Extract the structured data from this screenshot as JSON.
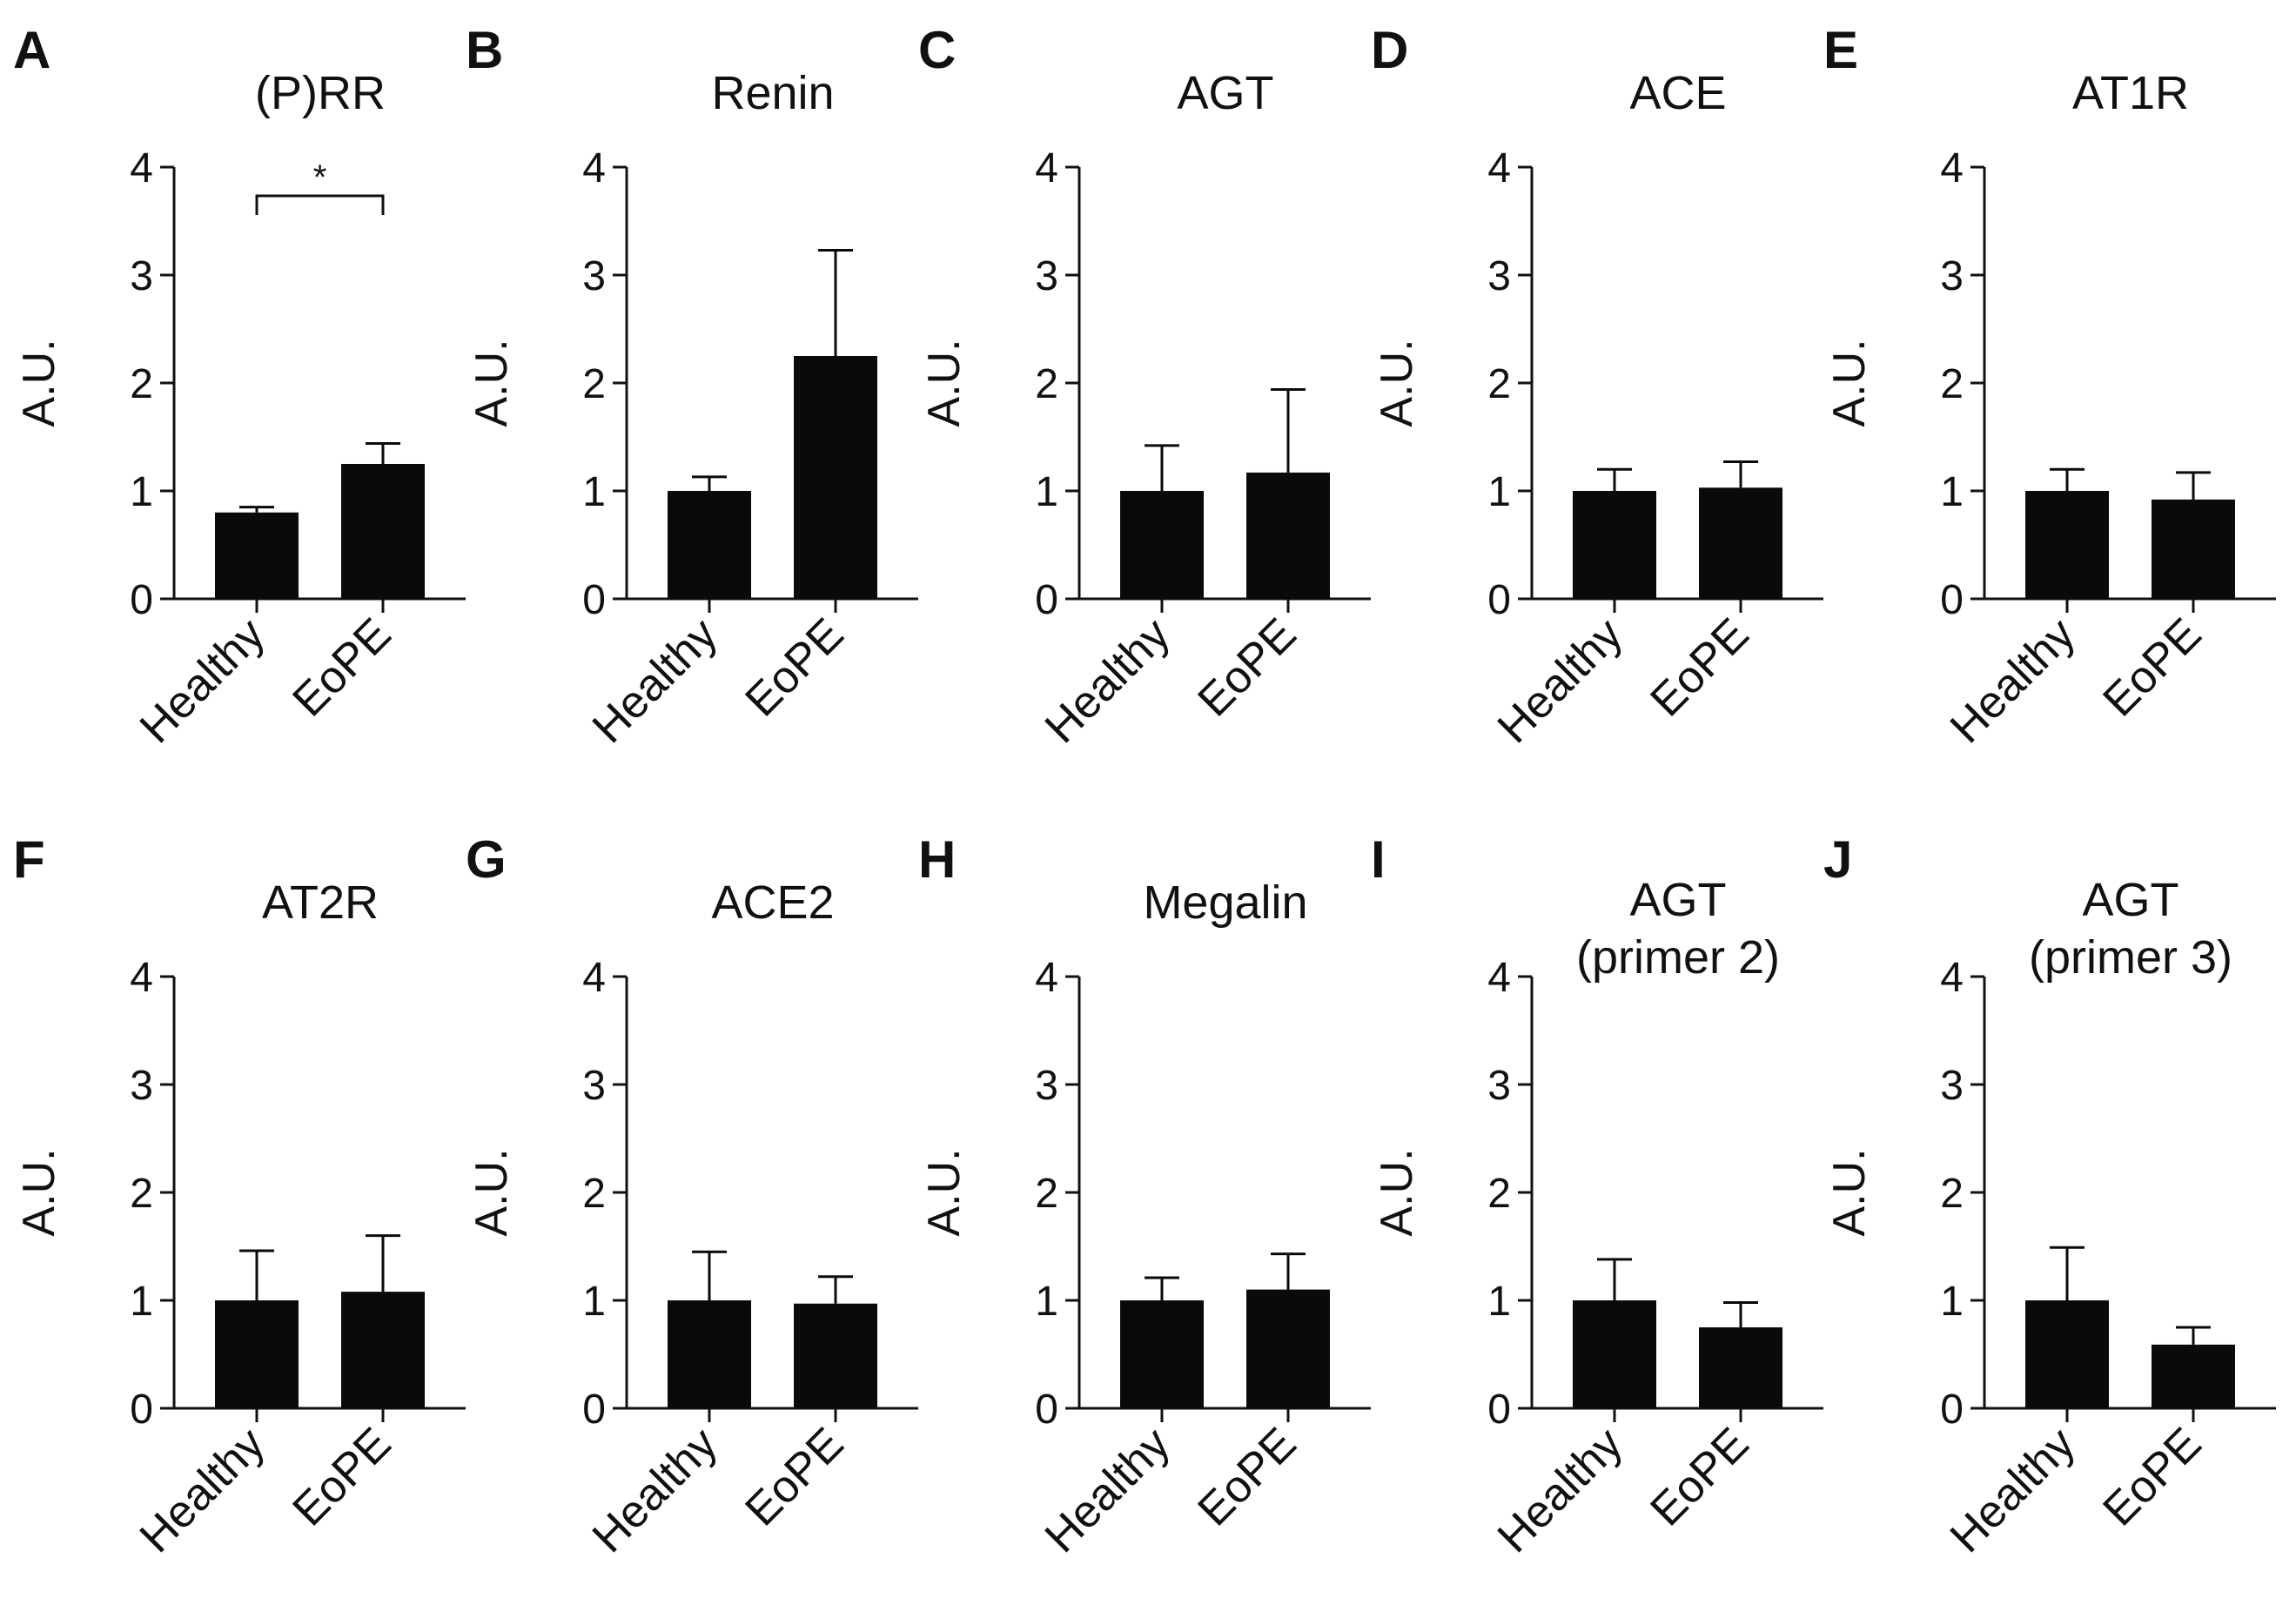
{
  "figure": {
    "background": "#ffffff",
    "bar_color": "#0a0a0a",
    "axis_color": "#111111"
  },
  "chart_data": [
    {
      "letter": "A",
      "type": "bar",
      "title": [
        "(P)RR"
      ],
      "ylabel": "A.U.",
      "ylim": [
        0,
        4
      ],
      "yticks": [
        "0",
        "1",
        "2",
        "3",
        "4"
      ],
      "categories": [
        "Healthy",
        "EoPE"
      ],
      "values": [
        0.8,
        1.25
      ],
      "errors": [
        0.05,
        0.19
      ],
      "significance": {
        "pair": [
          0,
          1
        ],
        "label": "*"
      }
    },
    {
      "letter": "B",
      "type": "bar",
      "title": [
        "Renin"
      ],
      "ylabel": "A.U.",
      "ylim": [
        0,
        4
      ],
      "yticks": [
        "0",
        "1",
        "2",
        "3",
        "4"
      ],
      "categories": [
        "Healthy",
        "EoPE"
      ],
      "values": [
        1.0,
        2.25
      ],
      "errors": [
        0.13,
        0.98
      ]
    },
    {
      "letter": "C",
      "type": "bar",
      "title": [
        "AGT"
      ],
      "ylabel": "A.U.",
      "ylim": [
        0,
        4
      ],
      "yticks": [
        "0",
        "1",
        "2",
        "3",
        "4"
      ],
      "categories": [
        "Healthy",
        "EoPE"
      ],
      "values": [
        1.0,
        1.17
      ],
      "errors": [
        0.42,
        0.77
      ]
    },
    {
      "letter": "D",
      "type": "bar",
      "title": [
        "ACE"
      ],
      "ylabel": "A.U.",
      "ylim": [
        0,
        4
      ],
      "yticks": [
        "0",
        "1",
        "2",
        "3",
        "4"
      ],
      "categories": [
        "Healthy",
        "EoPE"
      ],
      "values": [
        1.0,
        1.03
      ],
      "errors": [
        0.2,
        0.24
      ]
    },
    {
      "letter": "E",
      "type": "bar",
      "title": [
        "AT1R"
      ],
      "ylabel": "A.U.",
      "ylim": [
        0,
        4
      ],
      "yticks": [
        "0",
        "1",
        "2",
        "3",
        "4"
      ],
      "categories": [
        "Healthy",
        "EoPE"
      ],
      "values": [
        1.0,
        0.92
      ],
      "errors": [
        0.2,
        0.25
      ]
    },
    {
      "letter": "F",
      "type": "bar",
      "title": [
        "AT2R"
      ],
      "ylabel": "A.U.",
      "ylim": [
        0,
        4
      ],
      "yticks": [
        "0",
        "1",
        "2",
        "3",
        "4"
      ],
      "categories": [
        "Healthy",
        "EoPE"
      ],
      "values": [
        1.0,
        1.08
      ],
      "errors": [
        0.46,
        0.52
      ]
    },
    {
      "letter": "G",
      "type": "bar",
      "title": [
        "ACE2"
      ],
      "ylabel": "A.U.",
      "ylim": [
        0,
        4
      ],
      "yticks": [
        "0",
        "1",
        "2",
        "3",
        "4"
      ],
      "categories": [
        "Healthy",
        "EoPE"
      ],
      "values": [
        1.0,
        0.97
      ],
      "errors": [
        0.45,
        0.25
      ]
    },
    {
      "letter": "H",
      "type": "bar",
      "title": [
        "Megalin"
      ],
      "ylabel": "A.U.",
      "ylim": [
        0,
        4
      ],
      "yticks": [
        "0",
        "1",
        "2",
        "3",
        "4"
      ],
      "categories": [
        "Healthy",
        "EoPE"
      ],
      "values": [
        1.0,
        1.1
      ],
      "errors": [
        0.21,
        0.33
      ]
    },
    {
      "letter": "I",
      "type": "bar",
      "title": [
        "AGT",
        "(primer 2)"
      ],
      "ylabel": "A.U.",
      "ylim": [
        0,
        4
      ],
      "yticks": [
        "0",
        "1",
        "2",
        "3",
        "4"
      ],
      "categories": [
        "Healthy",
        "EoPE"
      ],
      "values": [
        1.0,
        0.75
      ],
      "errors": [
        0.38,
        0.23
      ]
    },
    {
      "letter": "J",
      "type": "bar",
      "title": [
        "AGT",
        "(primer 3)"
      ],
      "ylabel": "A.U.",
      "ylim": [
        0,
        4
      ],
      "yticks": [
        "0",
        "1",
        "2",
        "3",
        "4"
      ],
      "categories": [
        "Healthy",
        "EoPE"
      ],
      "values": [
        1.0,
        0.59
      ],
      "errors": [
        0.49,
        0.16
      ]
    }
  ]
}
